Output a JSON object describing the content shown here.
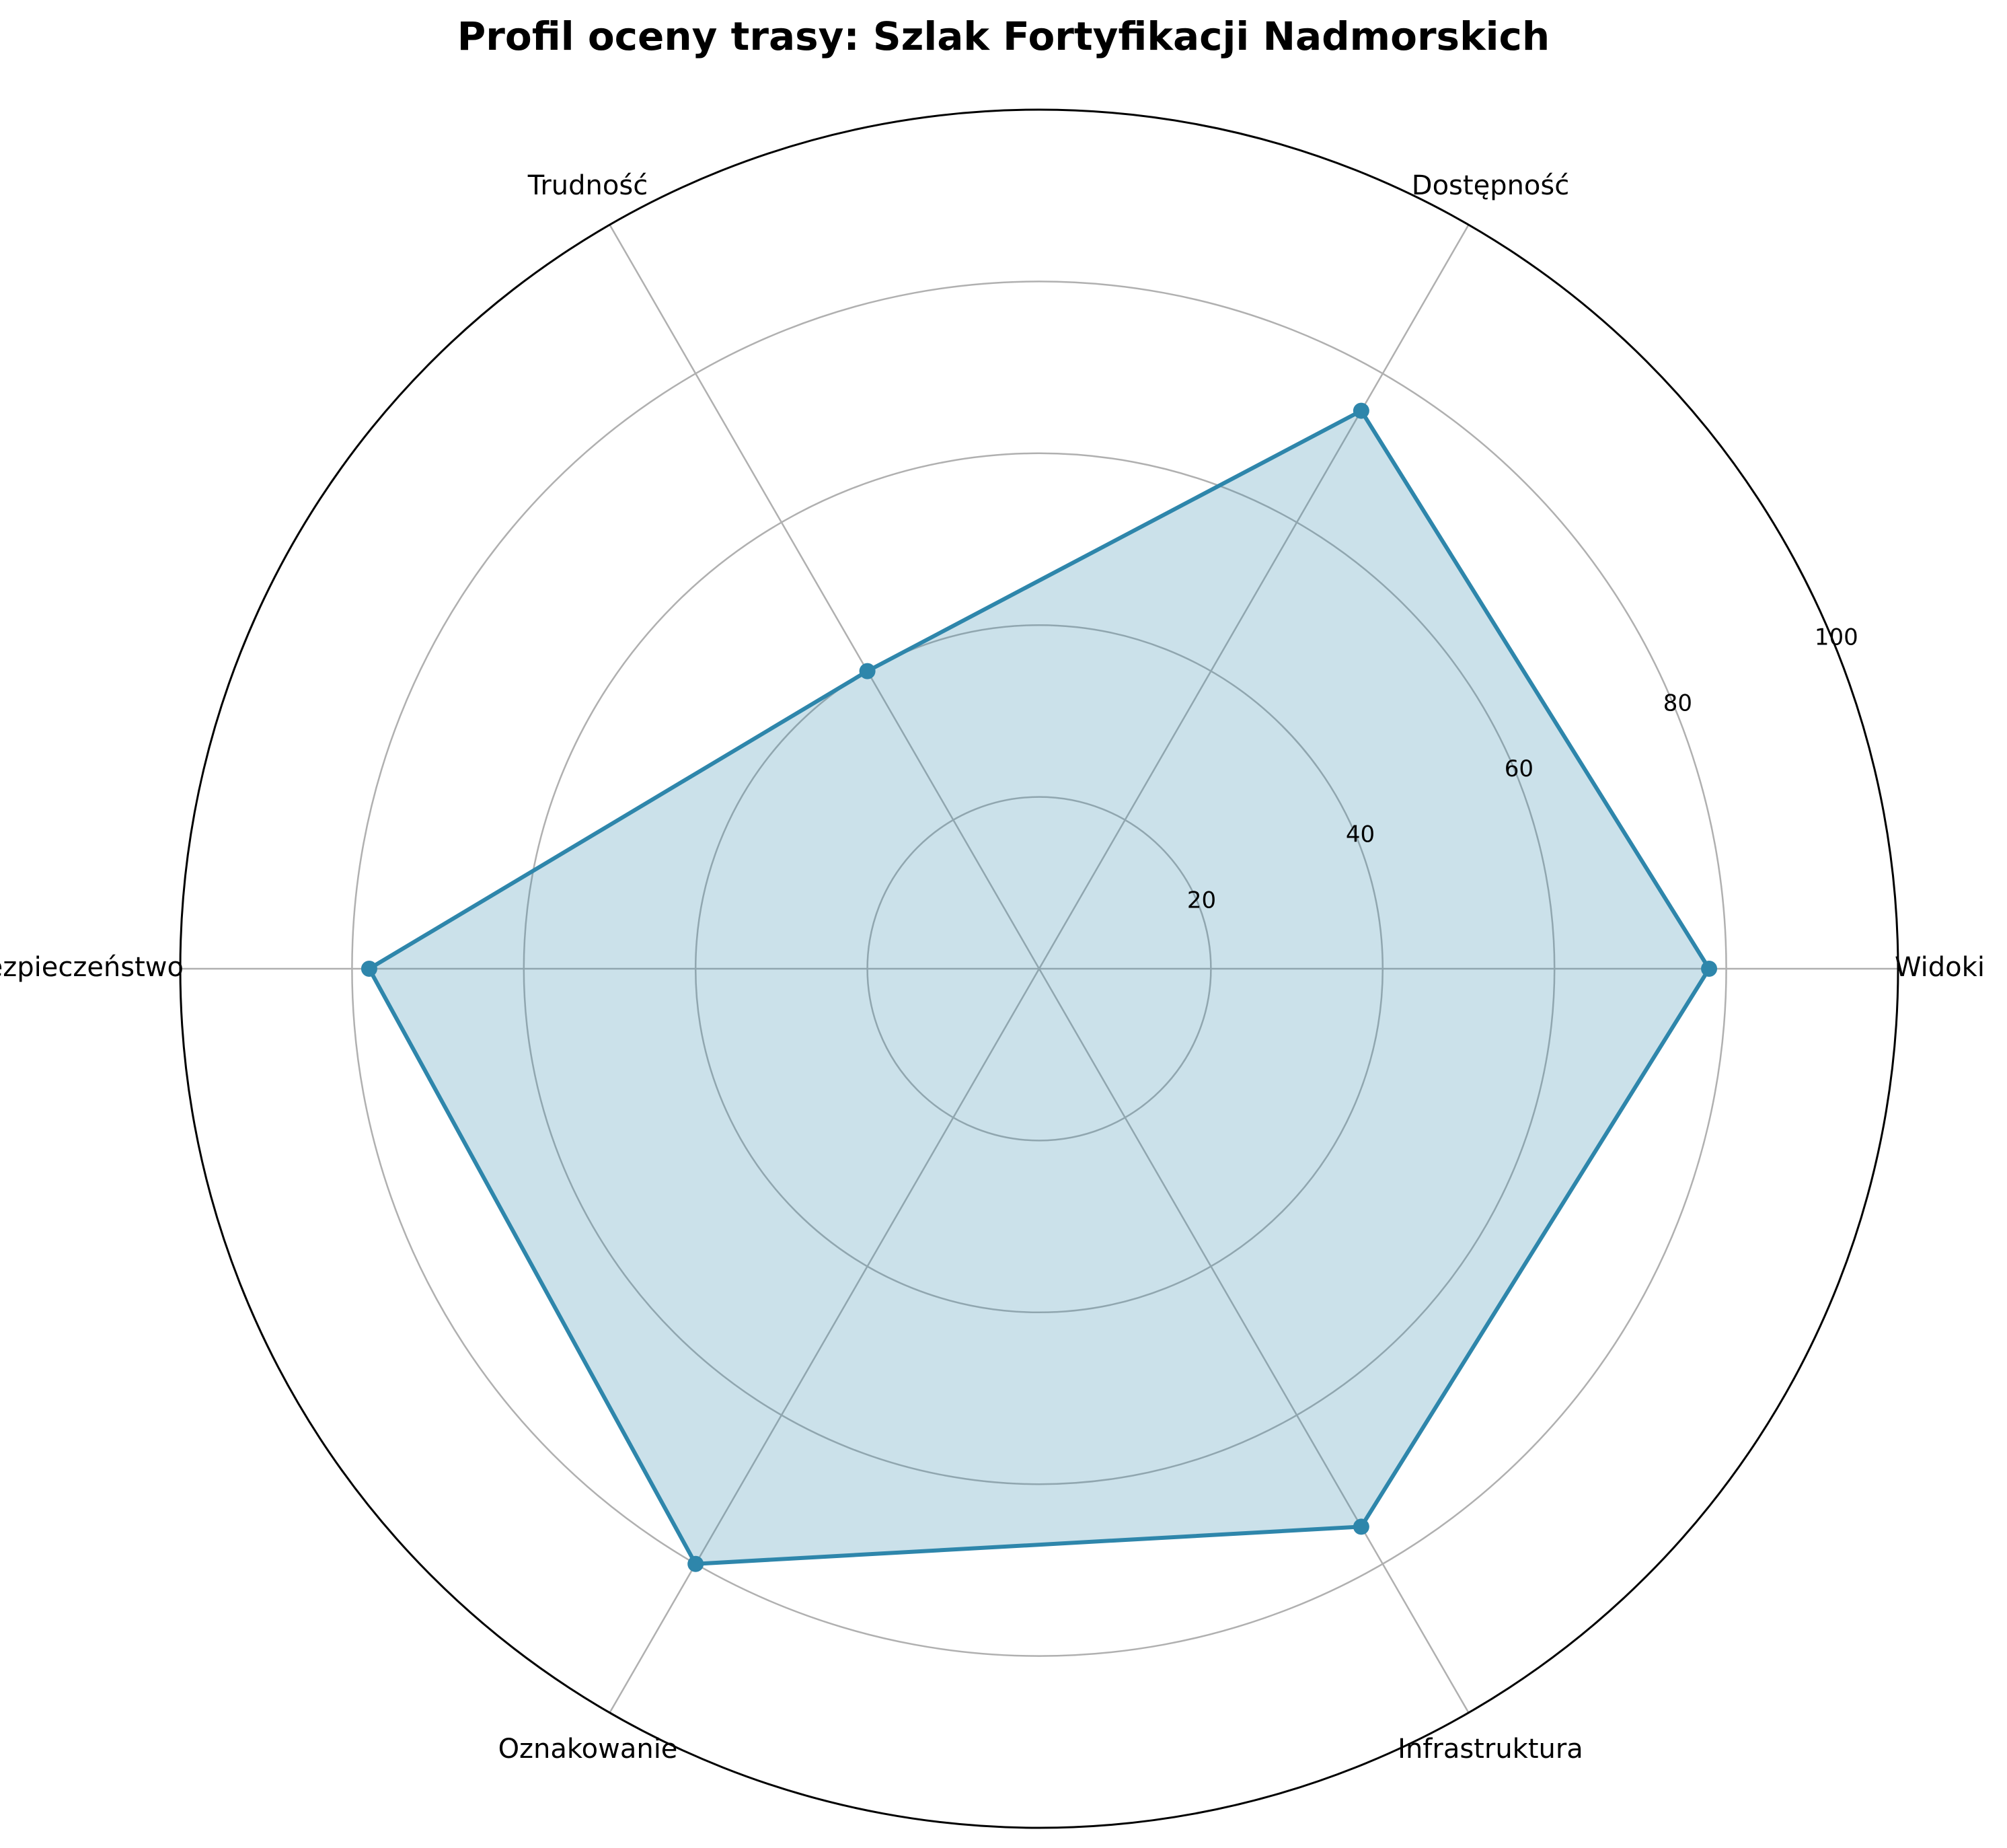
{
  "chart_data": {
    "type": "radar",
    "title": "Profil oceny trasy: Szlak Fortyfikacji Nadmorskich",
    "categories": [
      "Widoki",
      "Dostępność",
      "Trudność",
      "Bezpieczeństwo",
      "Oznakowanie",
      "Infrastruktura"
    ],
    "values": [
      78,
      75,
      40,
      78,
      80,
      75
    ],
    "rlim": [
      0,
      100
    ],
    "rticks": [
      20,
      40,
      60,
      80,
      100
    ],
    "grid": true,
    "colors": {
      "line": "#2e86ab",
      "fill": "#2e86ab",
      "grid": "#b0b0b0",
      "frame": "#000000"
    }
  }
}
